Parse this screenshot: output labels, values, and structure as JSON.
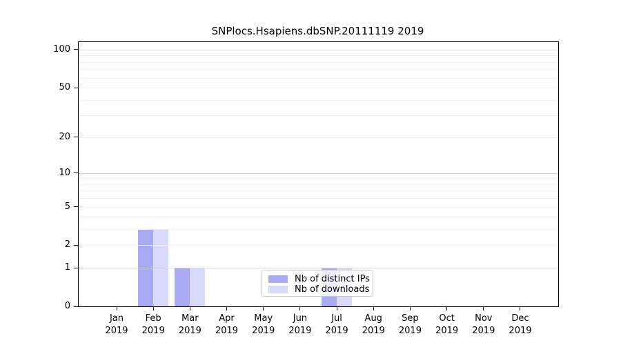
{
  "title": "SNPlocs.Hsapiens.dbSNP.20111119 2019",
  "colors": {
    "distinct_ips_bar": "#a9a9f4",
    "downloads_bar": "#d9d9f9",
    "grid_minor": "#f0f0f0",
    "grid_major": "#d4d4d4",
    "axis": "#000000",
    "legend_border": "#cbcbcb"
  },
  "legend": {
    "items": [
      {
        "label": "Nb of distinct IPs",
        "color_key": "distinct_ips_bar"
      },
      {
        "label": "Nb of downloads",
        "color_key": "downloads_bar"
      }
    ]
  },
  "chart_data": {
    "type": "bar",
    "title": "SNPlocs.Hsapiens.dbSNP.20111119 2019",
    "categories": [
      "Jan",
      "Feb",
      "Mar",
      "Apr",
      "May",
      "Jun",
      "Jul",
      "Aug",
      "Sep",
      "Oct",
      "Nov",
      "Dec"
    ],
    "category_year": "2019",
    "series": [
      {
        "name": "Nb of distinct IPs",
        "values": [
          0,
          3,
          1,
          0,
          0,
          0,
          1,
          0,
          0,
          0,
          0,
          0
        ]
      },
      {
        "name": "Nb of downloads",
        "values": [
          0,
          3,
          1,
          0,
          0,
          0,
          1,
          0,
          0,
          0,
          0,
          0
        ]
      }
    ],
    "xlabel": "",
    "ylabel": "",
    "yscale": "log1p",
    "ylim": [
      0,
      115
    ],
    "ytick_values": [
      0,
      1,
      2,
      5,
      10,
      20,
      50,
      100
    ],
    "ytick_labels": [
      "0",
      "1",
      "2",
      "5",
      "10",
      "20",
      "50",
      "100"
    ],
    "major_gridlines": [
      1,
      10,
      100
    ],
    "minor_gridlines": [
      2,
      3,
      4,
      5,
      6,
      7,
      8,
      9,
      20,
      30,
      40,
      50,
      60,
      70,
      80,
      90
    ],
    "grid": true,
    "legend_position": "lower center-left inside plot"
  }
}
